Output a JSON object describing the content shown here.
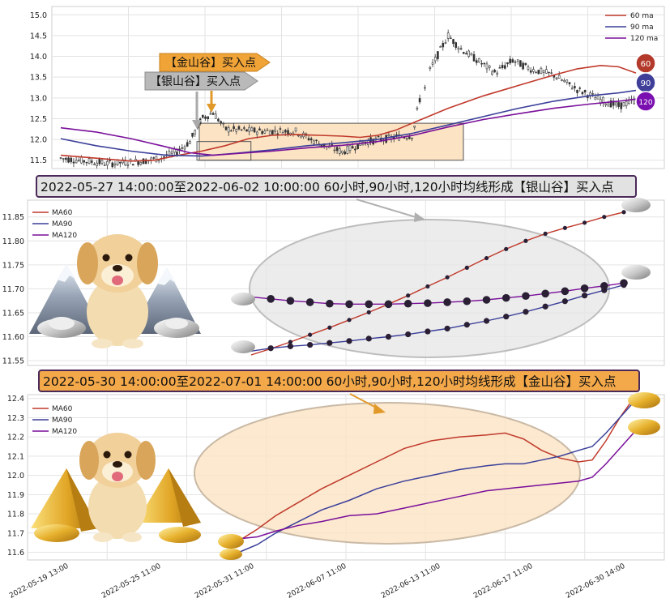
{
  "colors": {
    "ma60": "#c0392b",
    "ma90": "#3b3f99",
    "ma120": "#7a0f9a",
    "candle": "#333333",
    "zone_fill": "#fbe3c4",
    "silver_arrow": "#b9b9b9",
    "gold_arrow": "#f0a336",
    "silver_banner": "#e2e2e2",
    "gold_banner": "#f3a84a",
    "badge60": "#b33a2a",
    "badge90": "#3f3f9a",
    "badge120": "#7a10b0"
  },
  "top_panel": {
    "legend": [
      "60 ma",
      "90 ma",
      "120 ma"
    ],
    "badges": [
      "60",
      "90",
      "120"
    ],
    "gold_arrow_label": "【金山谷】买入点",
    "silver_arrow_label": "【银山谷】买入点"
  },
  "middle_panel": {
    "banner": "2022-05-27 14:00:00至2022-06-02 10:00:00 60小时,90小时,120小时均线形成【银山谷】买入点",
    "legend": [
      "MA60",
      "MA90",
      "MA120"
    ]
  },
  "bottom_panel": {
    "banner": "2022-05-30 14:00:00至2022-07-01 14:00:00 60小时,90小时,120小时均线形成【金山谷】买入点",
    "legend": [
      "MA60",
      "MA90",
      "MA120"
    ]
  },
  "chart_data": [
    {
      "type": "line",
      "panel": "top",
      "description_note": "",
      "ylim": [
        11.3,
        15.2
      ],
      "yticks": [
        11.5,
        12.0,
        12.5,
        13.0,
        13.5,
        14.0,
        14.5,
        15.0
      ],
      "x_index_range": [
        0,
        250
      ],
      "series": [
        {
          "name": "60 ma",
          "points": [
            [
              0,
              11.62
            ],
            [
              30,
              11.55
            ],
            [
              60,
              11.48
            ],
            [
              80,
              11.5
            ],
            [
              100,
              11.62
            ],
            [
              120,
              11.72
            ],
            [
              140,
              11.85
            ],
            [
              160,
              12.02
            ],
            [
              180,
              12.1
            ],
            [
              200,
              12.12
            ],
            [
              220,
              12.1
            ],
            [
              240,
              12.08
            ],
            [
              255,
              12.05
            ],
            [
              270,
              12.1
            ],
            [
              285,
              12.22
            ],
            [
              300,
              12.4
            ],
            [
              330,
              12.75
            ],
            [
              360,
              13.05
            ],
            [
              390,
              13.3
            ],
            [
              420,
              13.55
            ],
            [
              440,
              13.7
            ],
            [
              460,
              13.78
            ],
            [
              475,
              13.75
            ],
            [
              490,
              13.6
            ]
          ]
        },
        {
          "name": "90 ma",
          "points": [
            [
              0,
              12.02
            ],
            [
              30,
              11.85
            ],
            [
              60,
              11.72
            ],
            [
              90,
              11.62
            ],
            [
              120,
              11.6
            ],
            [
              150,
              11.67
            ],
            [
              180,
              11.75
            ],
            [
              210,
              11.85
            ],
            [
              240,
              11.92
            ],
            [
              270,
              12.0
            ],
            [
              300,
              12.15
            ],
            [
              330,
              12.35
            ],
            [
              360,
              12.55
            ],
            [
              390,
              12.75
            ],
            [
              420,
              12.92
            ],
            [
              450,
              13.05
            ],
            [
              475,
              13.12
            ],
            [
              490,
              13.18
            ]
          ]
        },
        {
          "name": "120 ma",
          "points": [
            [
              0,
              12.28
            ],
            [
              30,
              12.18
            ],
            [
              60,
              12.02
            ],
            [
              90,
              11.82
            ],
            [
              110,
              11.68
            ],
            [
              130,
              11.62
            ],
            [
              150,
              11.66
            ],
            [
              180,
              11.72
            ],
            [
              210,
              11.8
            ],
            [
              240,
              11.86
            ],
            [
              270,
              11.95
            ],
            [
              300,
              12.1
            ],
            [
              330,
              12.3
            ],
            [
              360,
              12.48
            ],
            [
              390,
              12.62
            ],
            [
              420,
              12.75
            ],
            [
              450,
              12.85
            ],
            [
              475,
              12.92
            ],
            [
              490,
              12.97
            ]
          ]
        }
      ]
    },
    {
      "type": "line",
      "panel": "middle",
      "ylim": [
        11.54,
        11.885
      ],
      "yticks": [
        11.55,
        11.6,
        11.65,
        11.7,
        11.75,
        11.8,
        11.85
      ],
      "x": [
        0,
        1,
        2,
        3,
        4,
        5,
        6,
        7,
        8,
        9,
        10,
        11,
        12,
        13,
        14,
        15,
        16,
        17,
        18,
        19
      ],
      "series": [
        {
          "name": "MA60",
          "values": [
            11.562,
            11.575,
            11.589,
            11.604,
            11.619,
            11.635,
            11.651,
            11.668,
            11.686,
            11.705,
            11.724,
            11.744,
            11.764,
            11.783,
            11.8,
            11.815,
            11.827,
            11.838,
            11.85,
            11.86
          ]
        },
        {
          "name": "MA90",
          "values": [
            11.57,
            11.576,
            11.58,
            11.583,
            11.587,
            11.591,
            11.596,
            11.6,
            11.605,
            11.611,
            11.617,
            11.625,
            11.633,
            11.642,
            11.652,
            11.663,
            11.674,
            11.686,
            11.697,
            11.708
          ]
        },
        {
          "name": "MA120",
          "values": [
            11.683,
            11.679,
            11.675,
            11.672,
            11.669,
            11.668,
            11.668,
            11.668,
            11.669,
            11.67,
            11.672,
            11.674,
            11.677,
            11.681,
            11.685,
            11.69,
            11.695,
            11.701,
            11.706,
            11.712
          ]
        }
      ]
    },
    {
      "type": "line",
      "panel": "bottom",
      "ylim": [
        11.56,
        12.42
      ],
      "yticks": [
        11.6,
        11.7,
        11.8,
        11.9,
        12.0,
        12.1,
        12.2,
        12.3,
        12.4
      ],
      "xtick_labels": [
        "2022-05-19 13:00",
        "2022-05-25 11:00",
        "2022-05-31 11:00",
        "2022-06-07 11:00",
        "2022-06-13 11:00",
        "2022-06-17 11:00",
        "2022-06-30 14:00"
      ],
      "series": [
        {
          "name": "MA60",
          "points": [
            [
              0,
              11.66
            ],
            [
              4,
              11.72
            ],
            [
              8,
              11.79
            ],
            [
              13,
              11.86
            ],
            [
              18,
              11.93
            ],
            [
              24,
              12.0
            ],
            [
              30,
              12.07
            ],
            [
              36,
              12.14
            ],
            [
              42,
              12.18
            ],
            [
              48,
              12.2
            ],
            [
              54,
              12.21
            ],
            [
              58,
              12.22
            ],
            [
              62,
              12.19
            ],
            [
              66,
              12.13
            ],
            [
              70,
              12.09
            ],
            [
              74,
              12.07
            ],
            [
              77,
              12.08
            ],
            [
              80,
              12.18
            ],
            [
              83,
              12.3
            ],
            [
              86,
              12.4
            ]
          ]
        },
        {
          "name": "MA90",
          "points": [
            [
              0,
              11.6
            ],
            [
              4,
              11.64
            ],
            [
              8,
              11.7
            ],
            [
              13,
              11.76
            ],
            [
              18,
              11.82
            ],
            [
              24,
              11.87
            ],
            [
              30,
              11.93
            ],
            [
              36,
              11.97
            ],
            [
              42,
              12.0
            ],
            [
              48,
              12.03
            ],
            [
              54,
              12.05
            ],
            [
              58,
              12.06
            ],
            [
              62,
              12.06
            ],
            [
              66,
              12.08
            ],
            [
              70,
              12.1
            ],
            [
              74,
              12.13
            ],
            [
              77,
              12.15
            ],
            [
              80,
              12.22
            ],
            [
              83,
              12.3
            ],
            [
              86,
              12.38
            ]
          ]
        },
        {
          "name": "MA120",
          "points": [
            [
              0,
              11.67
            ],
            [
              4,
              11.68
            ],
            [
              8,
              11.71
            ],
            [
              13,
              11.74
            ],
            [
              18,
              11.76
            ],
            [
              24,
              11.79
            ],
            [
              30,
              11.8
            ],
            [
              36,
              11.83
            ],
            [
              42,
              11.86
            ],
            [
              48,
              11.89
            ],
            [
              54,
              11.92
            ],
            [
              58,
              11.93
            ],
            [
              62,
              11.94
            ],
            [
              66,
              11.95
            ],
            [
              70,
              11.96
            ],
            [
              74,
              11.97
            ],
            [
              77,
              11.99
            ],
            [
              80,
              12.06
            ],
            [
              83,
              12.14
            ],
            [
              86,
              12.22
            ]
          ]
        }
      ]
    }
  ]
}
